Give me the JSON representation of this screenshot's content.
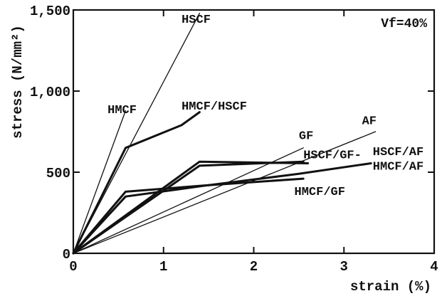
{
  "chart_data": {
    "type": "line",
    "title": "",
    "xlabel": "strain (%)",
    "ylabel": "stress (N/mm²)",
    "xlim": [
      0,
      4
    ],
    "ylim": [
      0,
      1500
    ],
    "x_ticks": [
      0,
      1,
      2,
      3,
      4
    ],
    "x_tick_labels": [
      "0",
      "1",
      "2",
      "3",
      "4"
    ],
    "y_ticks": [
      0,
      500,
      1000,
      1500
    ],
    "y_tick_labels": [
      "0",
      "500",
      "1,000",
      "1,500"
    ],
    "grid": false,
    "legend": "none",
    "annotation": "Vf=40%",
    "series": [
      {
        "name": "HSCF",
        "weight": "thin",
        "points": [
          [
            0,
            0
          ],
          [
            1.4,
            1480
          ]
        ]
      },
      {
        "name": "HMCF",
        "weight": "thin",
        "points": [
          [
            0,
            0
          ],
          [
            0.58,
            880
          ]
        ]
      },
      {
        "name": "AF",
        "weight": "thin",
        "points": [
          [
            0,
            0
          ],
          [
            3.35,
            750
          ]
        ]
      },
      {
        "name": "GF",
        "weight": "thin",
        "points": [
          [
            0,
            0
          ],
          [
            2.55,
            650
          ]
        ]
      },
      {
        "name": "HMCF/HSCF",
        "weight": "thick",
        "points": [
          [
            0,
            0
          ],
          [
            0.58,
            650
          ],
          [
            1.2,
            790
          ],
          [
            1.4,
            870
          ]
        ]
      },
      {
        "name": "HSCF/GF",
        "weight": "thick",
        "points": [
          [
            0,
            0
          ],
          [
            1.4,
            540
          ],
          [
            2.55,
            565
          ]
        ]
      },
      {
        "name": "HSCF/AF",
        "weight": "thick",
        "points": [
          [
            0,
            0
          ],
          [
            1.4,
            565
          ],
          [
            2.6,
            555
          ]
        ]
      },
      {
        "name": "HMCF/AF",
        "weight": "thick",
        "points": [
          [
            0,
            0
          ],
          [
            0.58,
            380
          ],
          [
            1.5,
            420
          ],
          [
            2.5,
            490
          ],
          [
            3.3,
            555
          ]
        ]
      },
      {
        "name": "HMCF/GF",
        "weight": "thick",
        "points": [
          [
            0,
            0
          ],
          [
            0.58,
            350
          ],
          [
            1.5,
            420
          ],
          [
            2.55,
            460
          ]
        ]
      }
    ],
    "series_labels": [
      {
        "series": "HSCF",
        "text": "HSCF",
        "at": [
          1.2,
          1420
        ]
      },
      {
        "series": "HMCF",
        "text": "HMCF",
        "at": [
          0.38,
          865
        ]
      },
      {
        "series": "HMCF/HSCF",
        "text": "HMCF/HSCF",
        "at": [
          1.2,
          885
        ]
      },
      {
        "series": "AF",
        "text": "AF",
        "at": [
          3.2,
          795
        ]
      },
      {
        "series": "GF",
        "text": "GF",
        "at": [
          2.5,
          705
        ]
      },
      {
        "series": "HSCF/GF",
        "text": "HSCF/GF-",
        "at": [
          2.55,
          585
        ]
      },
      {
        "series": "HSCF/AF",
        "text": "HSCF/AF",
        "at": [
          3.32,
          605
        ]
      },
      {
        "series": "HMCF/AF",
        "text": "HMCF/AF",
        "at": [
          3.32,
          515
        ]
      },
      {
        "series": "HMCF/GF",
        "text": "HMCF/GF",
        "at": [
          2.45,
          360
        ]
      }
    ]
  }
}
